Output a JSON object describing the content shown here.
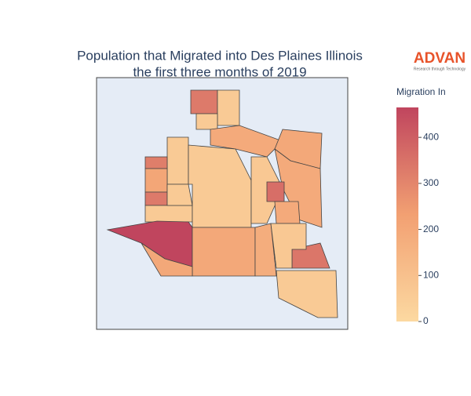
{
  "chart_data": {
    "type": "choropleth",
    "title": [
      "Population that Migrated into Des Plaines Illinois",
      "the first three months of 2019"
    ],
    "logo": {
      "name": "ADVAN",
      "tagline": "Research through Technology"
    },
    "colorbar_title": "Migration In",
    "values": [
      330,
      60,
      60,
      190,
      200,
      190,
      60,
      320,
      210,
      330,
      60,
      60,
      70,
      360,
      190,
      465,
      200,
      180,
      340,
      70,
      60,
      200,
      60
    ],
    "colorscale": [
      [
        0,
        "#fcd9a1"
      ],
      [
        0.5,
        "#f2a072"
      ],
      [
        1,
        "#c0455e"
      ]
    ],
    "zlim": [
      0,
      465
    ],
    "zticks": [
      0,
      100,
      200,
      300,
      400
    ]
  }
}
